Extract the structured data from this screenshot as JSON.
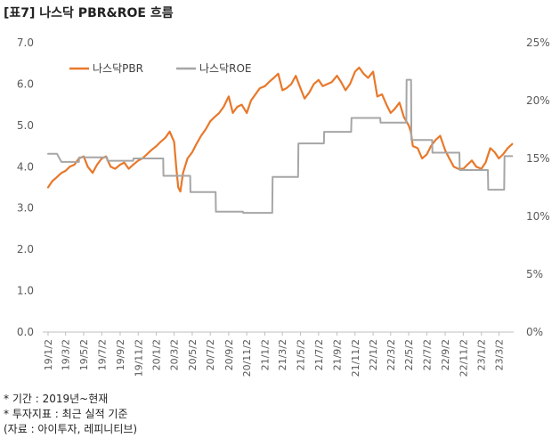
{
  "title": "[표7] 나스닥 PBR&ROE 흐름",
  "notes": [
    "* 기간 : 2019년~현재",
    "* 투자지표 : 최근 실적 기준",
    "(자료 : 아이투자, 레피니티브)"
  ],
  "chart_data": {
    "type": "line",
    "title": "[표7] 나스닥 PBR&ROE 흐름",
    "xlabel": "",
    "ylabel": "",
    "categories": [
      "19/1/2",
      "19/3/2",
      "19/5/2",
      "19/7/2",
      "19/9/2",
      "19/11/2",
      "20/1/2",
      "20/3/2",
      "20/5/2",
      "20/7/2",
      "20/9/2",
      "20/11/2",
      "21/1/2",
      "21/3/2",
      "21/5/2",
      "21/7/2",
      "21/9/2",
      "21/11/2",
      "22/1/2",
      "22/3/2",
      "22/5/2",
      "22/7/2",
      "22/9/2",
      "22/11/2",
      "23/1/2",
      "23/3/2"
    ],
    "y_left": {
      "ticks": [
        "0.0",
        "1.0",
        "2.0",
        "3.0",
        "4.0",
        "5.0",
        "6.0",
        "7.0"
      ],
      "ylim": [
        0,
        7
      ]
    },
    "y_right": {
      "ticks": [
        "0%",
        "5%",
        "10%",
        "15%",
        "20%",
        "25%"
      ],
      "ylim": [
        0,
        25
      ]
    },
    "legend": {
      "position": "top-left"
    },
    "grid": false,
    "series": [
      {
        "name": "나스닥PBR",
        "axis": "left",
        "color": "#e8782a",
        "points": [
          [
            "19/1/2",
            3.5
          ],
          [
            "19/1/16",
            3.65
          ],
          [
            "19/2/1",
            3.75
          ],
          [
            "19/2/16",
            3.85
          ],
          [
            "19/3/2",
            3.9
          ],
          [
            "19/3/16",
            4.0
          ],
          [
            "19/4/1",
            4.05
          ],
          [
            "19/4/16",
            4.2
          ],
          [
            "19/5/2",
            4.25
          ],
          [
            "19/5/16",
            4.0
          ],
          [
            "19/6/1",
            3.85
          ],
          [
            "19/6/16",
            4.05
          ],
          [
            "19/7/2",
            4.2
          ],
          [
            "19/7/16",
            4.25
          ],
          [
            "19/8/1",
            4.0
          ],
          [
            "19/8/16",
            3.95
          ],
          [
            "19/9/2",
            4.05
          ],
          [
            "19/9/16",
            4.1
          ],
          [
            "19/10/1",
            3.95
          ],
          [
            "19/10/16",
            4.05
          ],
          [
            "19/11/2",
            4.15
          ],
          [
            "19/11/16",
            4.2
          ],
          [
            "19/12/1",
            4.3
          ],
          [
            "19/12/16",
            4.4
          ],
          [
            "20/1/2",
            4.5
          ],
          [
            "20/1/16",
            4.6
          ],
          [
            "20/2/1",
            4.7
          ],
          [
            "20/2/16",
            4.85
          ],
          [
            "20/3/2",
            4.6
          ],
          [
            "20/3/9",
            4.0
          ],
          [
            "20/3/16",
            3.5
          ],
          [
            "20/3/23",
            3.4
          ],
          [
            "20/4/1",
            3.85
          ],
          [
            "20/4/16",
            4.2
          ],
          [
            "20/5/2",
            4.35
          ],
          [
            "20/5/16",
            4.55
          ],
          [
            "20/6/1",
            4.75
          ],
          [
            "20/6/16",
            4.9
          ],
          [
            "20/7/2",
            5.1
          ],
          [
            "20/7/16",
            5.2
          ],
          [
            "20/8/1",
            5.3
          ],
          [
            "20/8/16",
            5.45
          ],
          [
            "20/9/2",
            5.7
          ],
          [
            "20/9/16",
            5.3
          ],
          [
            "20/10/1",
            5.45
          ],
          [
            "20/10/16",
            5.5
          ],
          [
            "20/11/2",
            5.3
          ],
          [
            "20/11/16",
            5.6
          ],
          [
            "20/12/1",
            5.75
          ],
          [
            "20/12/16",
            5.9
          ],
          [
            "21/1/2",
            5.95
          ],
          [
            "21/1/16",
            6.05
          ],
          [
            "21/2/1",
            6.15
          ],
          [
            "21/2/16",
            6.25
          ],
          [
            "21/3/2",
            5.85
          ],
          [
            "21/3/16",
            5.9
          ],
          [
            "21/4/1",
            6.0
          ],
          [
            "21/4/16",
            6.2
          ],
          [
            "21/5/2",
            5.9
          ],
          [
            "21/5/16",
            5.65
          ],
          [
            "21/6/1",
            5.8
          ],
          [
            "21/6/16",
            6.0
          ],
          [
            "21/7/2",
            6.1
          ],
          [
            "21/7/16",
            5.95
          ],
          [
            "21/8/1",
            6.0
          ],
          [
            "21/8/16",
            6.05
          ],
          [
            "21/9/2",
            6.2
          ],
          [
            "21/9/16",
            6.05
          ],
          [
            "21/10/1",
            5.85
          ],
          [
            "21/10/16",
            6.0
          ],
          [
            "21/11/2",
            6.3
          ],
          [
            "21/11/16",
            6.4
          ],
          [
            "21/12/1",
            6.25
          ],
          [
            "21/12/16",
            6.15
          ],
          [
            "22/1/2",
            6.3
          ],
          [
            "22/1/16",
            5.7
          ],
          [
            "22/2/1",
            5.75
          ],
          [
            "22/2/16",
            5.5
          ],
          [
            "22/3/2",
            5.3
          ],
          [
            "22/3/16",
            5.4
          ],
          [
            "22/4/1",
            5.55
          ],
          [
            "22/4/16",
            5.2
          ],
          [
            "22/5/2",
            5.0
          ],
          [
            "22/5/9",
            4.85
          ],
          [
            "22/5/16",
            4.5
          ],
          [
            "22/6/1",
            4.45
          ],
          [
            "22/6/16",
            4.2
          ],
          [
            "22/7/2",
            4.3
          ],
          [
            "22/7/16",
            4.5
          ],
          [
            "22/8/1",
            4.65
          ],
          [
            "22/8/16",
            4.75
          ],
          [
            "22/9/2",
            4.4
          ],
          [
            "22/9/16",
            4.2
          ],
          [
            "22/10/1",
            4.0
          ],
          [
            "22/10/16",
            3.95
          ],
          [
            "22/11/2",
            3.95
          ],
          [
            "22/11/16",
            4.05
          ],
          [
            "22/12/1",
            4.15
          ],
          [
            "22/12/16",
            4.0
          ],
          [
            "23/1/2",
            3.95
          ],
          [
            "23/1/16",
            4.1
          ],
          [
            "23/2/1",
            4.45
          ],
          [
            "23/2/16",
            4.35
          ],
          [
            "23/3/2",
            4.2
          ],
          [
            "23/3/16",
            4.3
          ],
          [
            "23/4/1",
            4.45
          ],
          [
            "23/4/16",
            4.55
          ]
        ]
      },
      {
        "name": "나스닥ROE",
        "axis": "right",
        "color": "#a6a6a6",
        "points": [
          [
            "19/1/2",
            15.4
          ],
          [
            "19/2/1",
            15.4
          ],
          [
            "19/2/16",
            14.7
          ],
          [
            "19/3/2",
            14.7
          ],
          [
            "19/4/16",
            14.7
          ],
          [
            "19/4/17",
            15.1
          ],
          [
            "19/6/1",
            15.1
          ],
          [
            "19/7/20",
            15.1
          ],
          [
            "19/7/21",
            14.8
          ],
          [
            "19/10/16",
            14.8
          ],
          [
            "19/10/17",
            15.0
          ],
          [
            "20/1/2",
            15.0
          ],
          [
            "20/1/25",
            15.0
          ],
          [
            "20/1/26",
            13.5
          ],
          [
            "20/4/25",
            13.5
          ],
          [
            "20/4/26",
            12.1
          ],
          [
            "20/7/20",
            12.1
          ],
          [
            "20/7/21",
            10.4
          ],
          [
            "20/10/20",
            10.4
          ],
          [
            "20/10/21",
            10.3
          ],
          [
            "21/1/27",
            10.3
          ],
          [
            "21/1/28",
            13.4
          ],
          [
            "21/4/24",
            13.4
          ],
          [
            "21/4/25",
            16.3
          ],
          [
            "21/7/20",
            16.3
          ],
          [
            "21/7/21",
            17.3
          ],
          [
            "21/10/20",
            17.3
          ],
          [
            "21/10/21",
            18.5
          ],
          [
            "22/1/26",
            18.5
          ],
          [
            "22/1/27",
            18.1
          ],
          [
            "22/4/24",
            18.1
          ],
          [
            "22/4/25",
            21.8
          ],
          [
            "22/5/10",
            21.8
          ],
          [
            "22/5/11",
            16.6
          ],
          [
            "22/7/20",
            16.6
          ],
          [
            "22/7/21",
            15.5
          ],
          [
            "22/10/20",
            15.5
          ],
          [
            "22/10/21",
            14.0
          ],
          [
            "23/1/24",
            14.0
          ],
          [
            "23/1/25",
            12.3
          ],
          [
            "23/3/20",
            12.3
          ],
          [
            "23/3/21",
            15.2
          ],
          [
            "23/4/16",
            15.2
          ]
        ]
      }
    ]
  }
}
